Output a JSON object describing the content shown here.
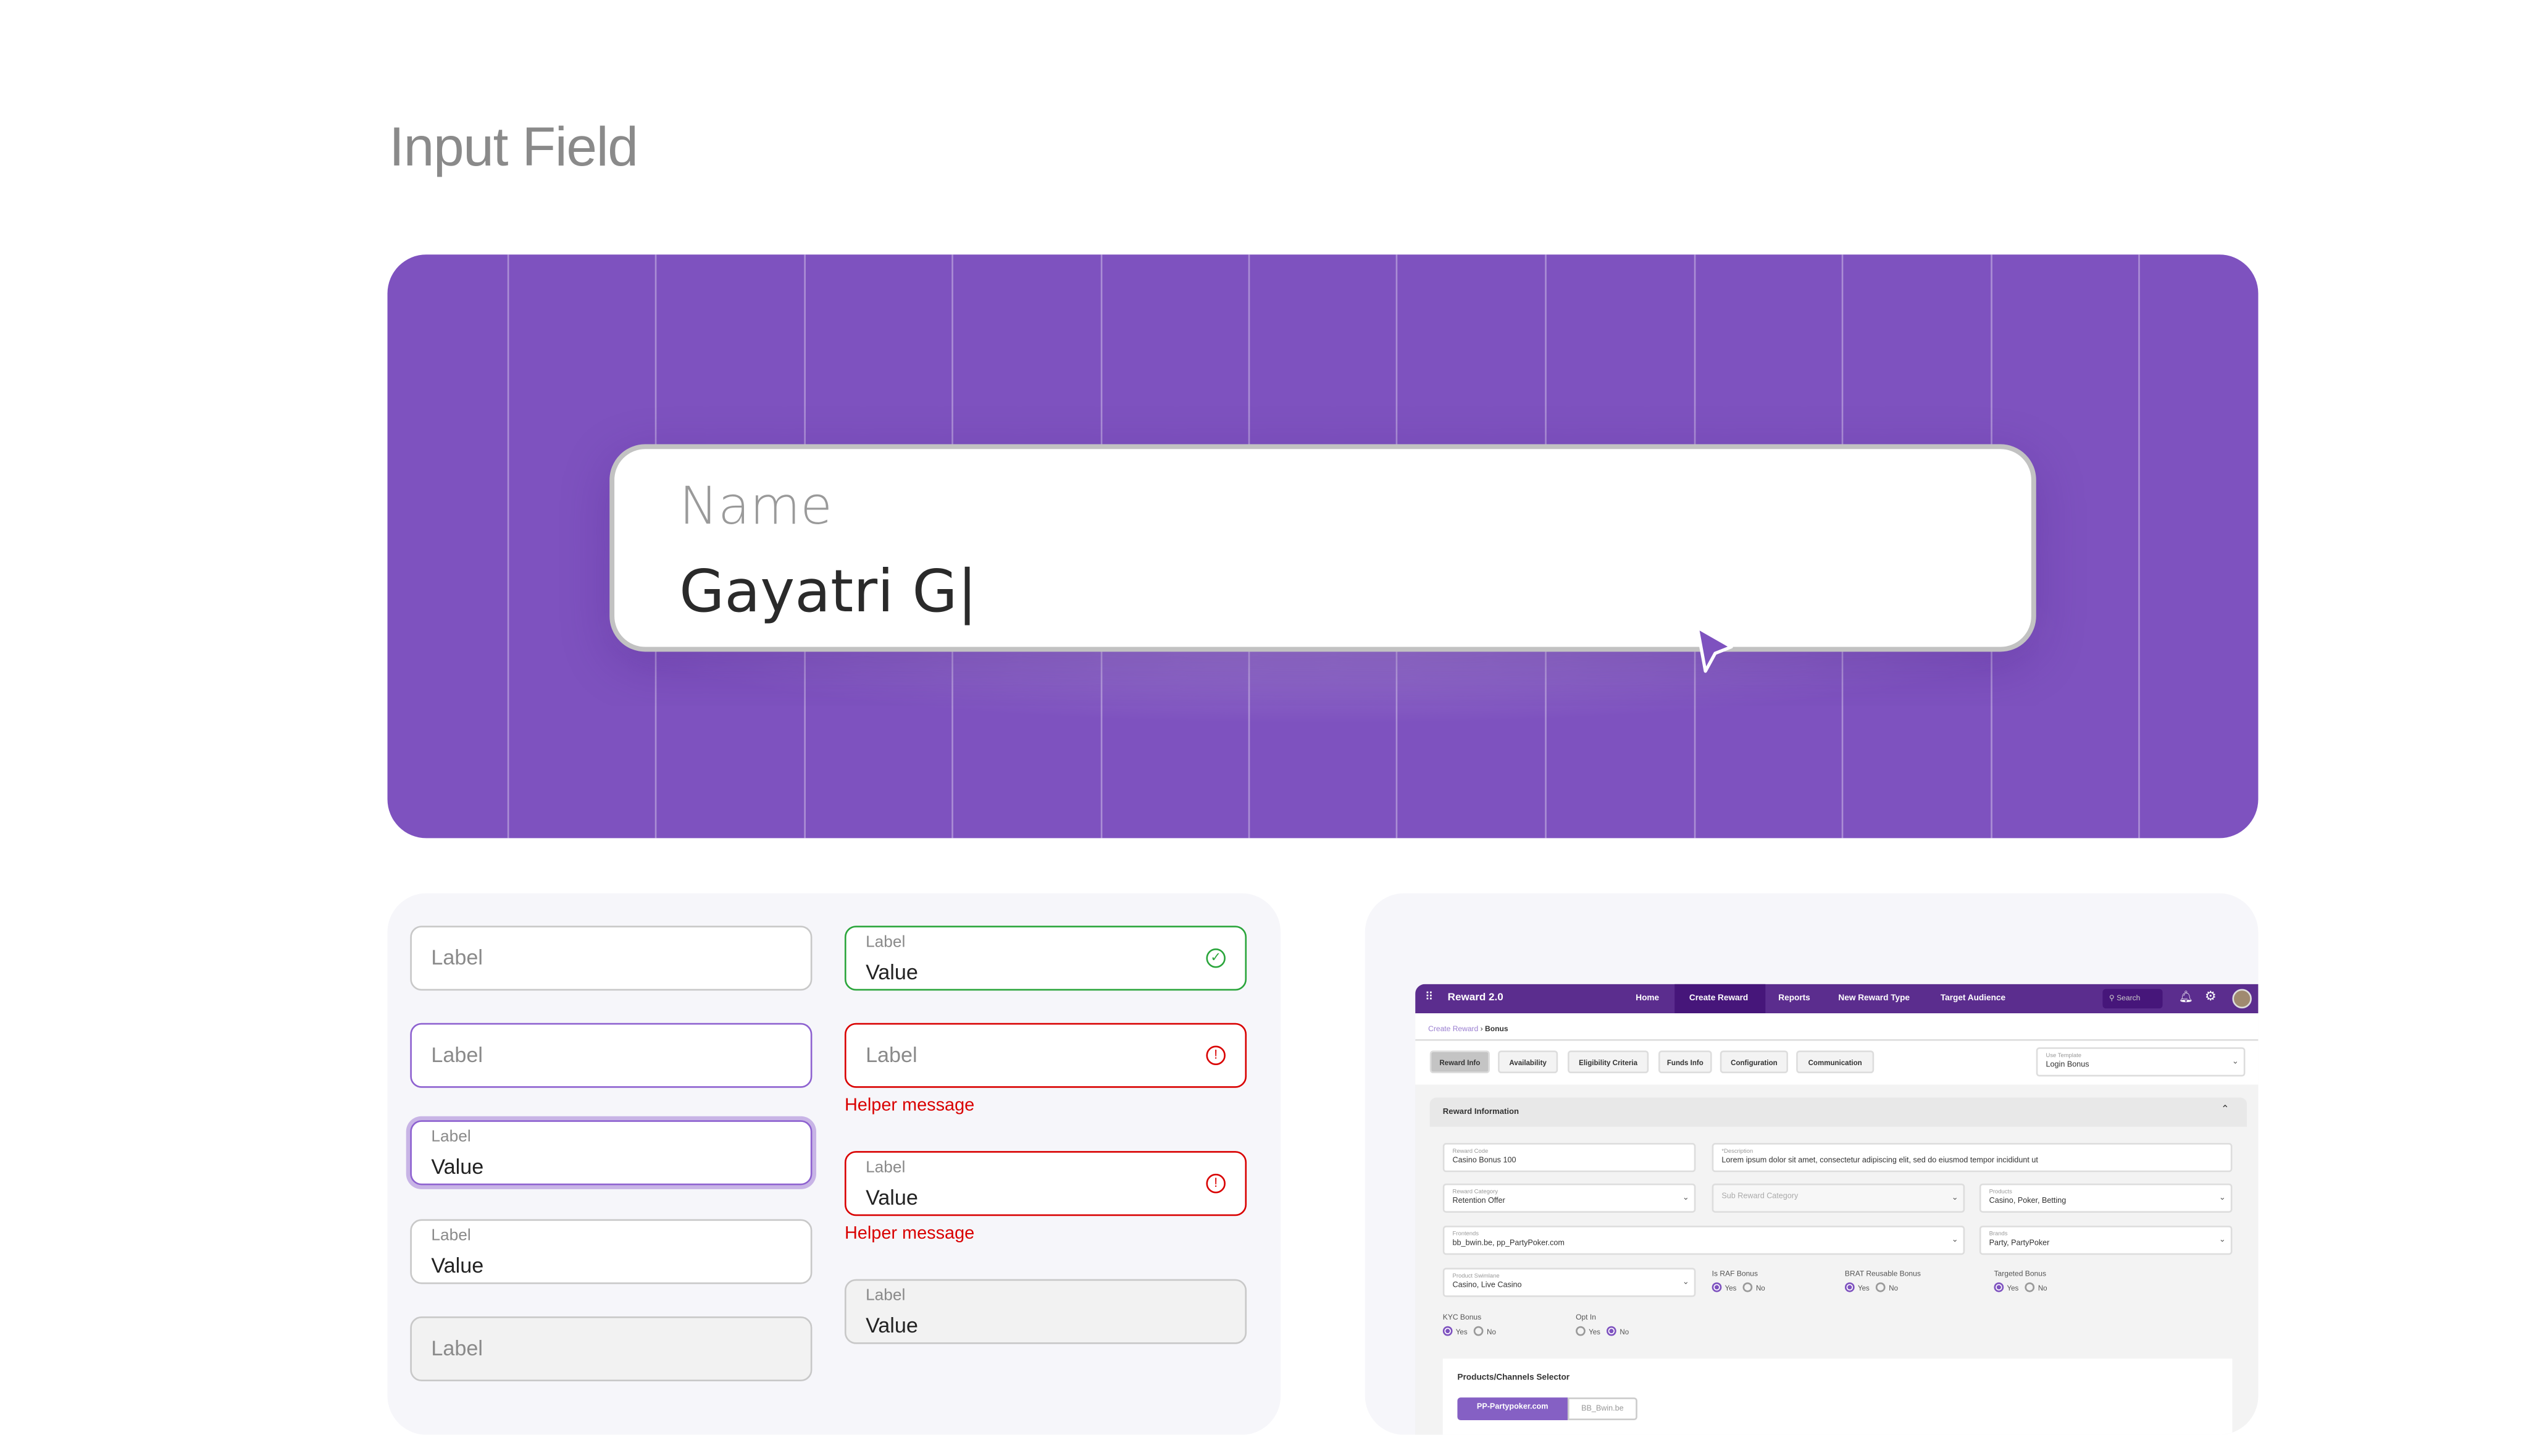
{
  "page_title": "Input Field",
  "colors": {
    "hero_bg": "#7e52bf",
    "focus": "#8e62d0",
    "success": "#2aa53b",
    "error": "#d90000",
    "mock_header": "#5b2d8e"
  },
  "hero": {
    "label": "Name",
    "value": "Gayatri G|",
    "cursor_icon": "pointer-arrow-icon"
  },
  "states": {
    "default_empty": {
      "label": "Label"
    },
    "hover_empty": {
      "label": "Label"
    },
    "focused": {
      "label": "Label",
      "value": "Value"
    },
    "filled": {
      "label": "Label",
      "value": "Value"
    },
    "disabled_empty": {
      "label": "Label"
    },
    "success": {
      "label": "Label",
      "value": "Value",
      "icon": "check-circle-icon"
    },
    "error_empty": {
      "label": "Label",
      "helper": "Helper message",
      "icon": "alert-circle-icon"
    },
    "error_filled": {
      "label": "Label",
      "value": "Value",
      "helper": "Helper message",
      "icon": "alert-circle-icon"
    },
    "disabled_filled": {
      "label": "Label",
      "value": "Value"
    }
  },
  "mockup": {
    "app_title": "Reward 2.0",
    "nav": [
      "Home",
      "Create Reward",
      "Reports",
      "New Reward Type",
      "Target Audience"
    ],
    "active_nav": "Create Reward",
    "search_placeholder": "Search",
    "breadcrumb": [
      "Create Reward",
      "Bonus"
    ],
    "tabs": [
      "Reward Info",
      "Availability",
      "Eligibility Criteria",
      "Funds Info",
      "Configuration",
      "Communication"
    ],
    "active_tab": "Reward Info",
    "template": {
      "label": "Use Template",
      "value": "Login Bonus"
    },
    "section_title": "Reward Information",
    "fields": {
      "reward_code": {
        "label": "Reward Code",
        "value": "Casino Bonus 100"
      },
      "description": {
        "label": "*Description",
        "value": "Lorem ipsum dolor sit amet, consectetur adipiscing elit, sed do eiusmod tempor incididunt ut"
      },
      "reward_category": {
        "label": "Reward Category",
        "value": "Retention Offer"
      },
      "sub_reward_category": {
        "placeholder": "Sub Reward Category"
      },
      "products": {
        "label": "Products",
        "value": "Casino, Poker, Betting"
      },
      "frontends": {
        "label": "Frontends",
        "value": "bb_bwin.be, pp_PartyPoker.com"
      },
      "brands": {
        "label": "Brands",
        "value": "Party, PartyPoker"
      },
      "product_swimlane": {
        "label": "Product Swimlane",
        "value": "Casino, Live Casino"
      }
    },
    "radios": [
      {
        "label": "Is RAF Bonus",
        "selected": "Yes"
      },
      {
        "label": "BRAT Reusable Bonus",
        "selected": "Yes"
      },
      {
        "label": "Targeted Bonus",
        "selected": "Yes"
      },
      {
        "label": "KYC Bonus",
        "selected": "Yes"
      },
      {
        "label": "Opt In",
        "selected": "No"
      }
    ],
    "yes": "Yes",
    "no": "No",
    "selector_title": "Products/Channels Selector",
    "selector_options": [
      "PP-Partypoker.com",
      "BB_Bwin.be"
    ],
    "selector_active": "PP-Partypoker.com"
  }
}
